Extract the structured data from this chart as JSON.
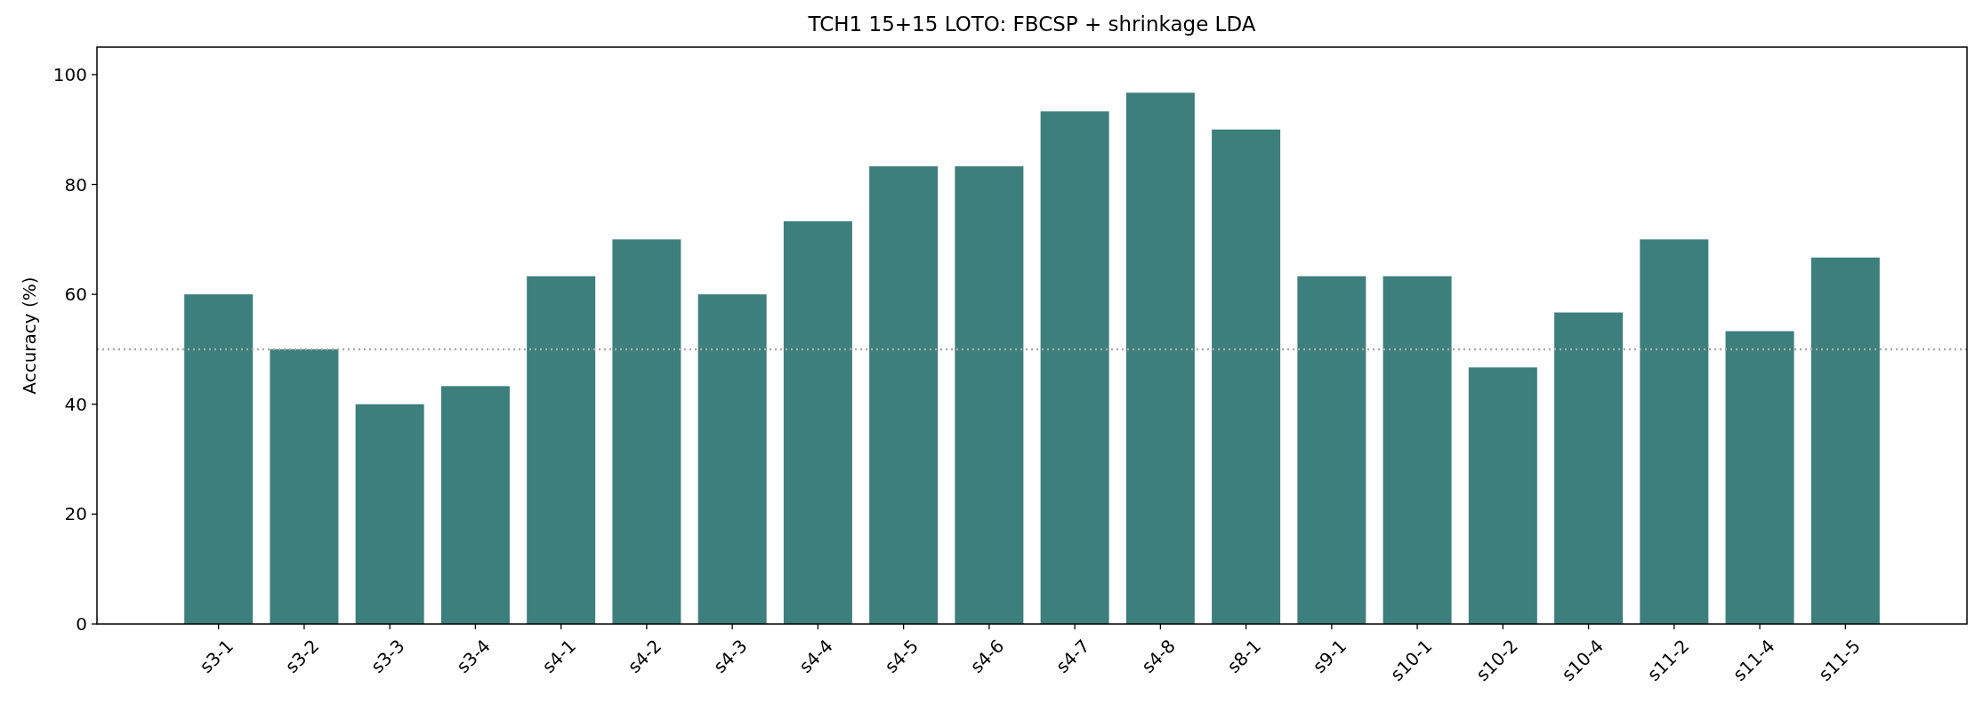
{
  "chart_data": {
    "type": "bar",
    "title": "TCH1 15+15 LOTO: FBCSP + shrinkage LDA",
    "ylabel": "Accuracy (%)",
    "categories": [
      "s3-1",
      "s3-2",
      "s3-3",
      "s3-4",
      "s4-1",
      "s4-2",
      "s4-3",
      "s4-4",
      "s4-5",
      "s4-6",
      "s4-7",
      "s4-8",
      "s8-1",
      "s9-1",
      "s10-1",
      "s10-2",
      "s10-4",
      "s11-2",
      "s11-4",
      "s11-5"
    ],
    "values": [
      60,
      50,
      40,
      43.3,
      63.3,
      70,
      60,
      73.3,
      83.3,
      83.3,
      93.3,
      96.7,
      90,
      63.3,
      63.3,
      46.7,
      56.7,
      70,
      53.3,
      66.7
    ],
    "color": "#3d7f7c",
    "ylim": [
      0,
      105
    ],
    "yticks": [
      0,
      20,
      40,
      60,
      80,
      100
    ],
    "grid": false,
    "ref_lines": [
      {
        "axis": "y",
        "value": 50,
        "color": "#aaaaaa",
        "line_style": "dotted"
      }
    ]
  }
}
